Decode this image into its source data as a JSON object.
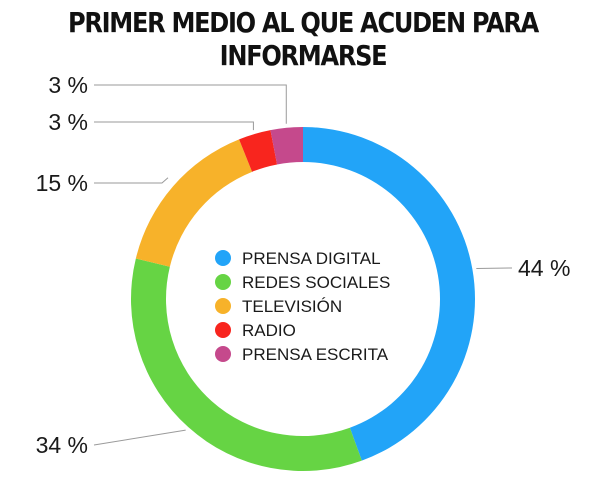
{
  "chart_data": {
    "type": "pie",
    "style": "donut",
    "title": "PRIMER MEDIO AL QUE ACUDEN PARA INFORMARSE",
    "legend_position": "center",
    "slices": [
      {
        "name": "PRENSA DIGITAL",
        "value": 44,
        "label": "44 %",
        "color": "#22A4F8"
      },
      {
        "name": "REDES SOCIALES",
        "value": 34,
        "label": "34 %",
        "color": "#66D444"
      },
      {
        "name": "TELEVISIÓN",
        "value": 15,
        "label": "15 %",
        "color": "#F7B22A"
      },
      {
        "name": "RADIO",
        "value": 3,
        "label": "3 %",
        "color": "#F8251E"
      },
      {
        "name": "PRENSA ESCRITA",
        "value": 3,
        "label": "3 %",
        "color": "#C5498C"
      }
    ]
  }
}
